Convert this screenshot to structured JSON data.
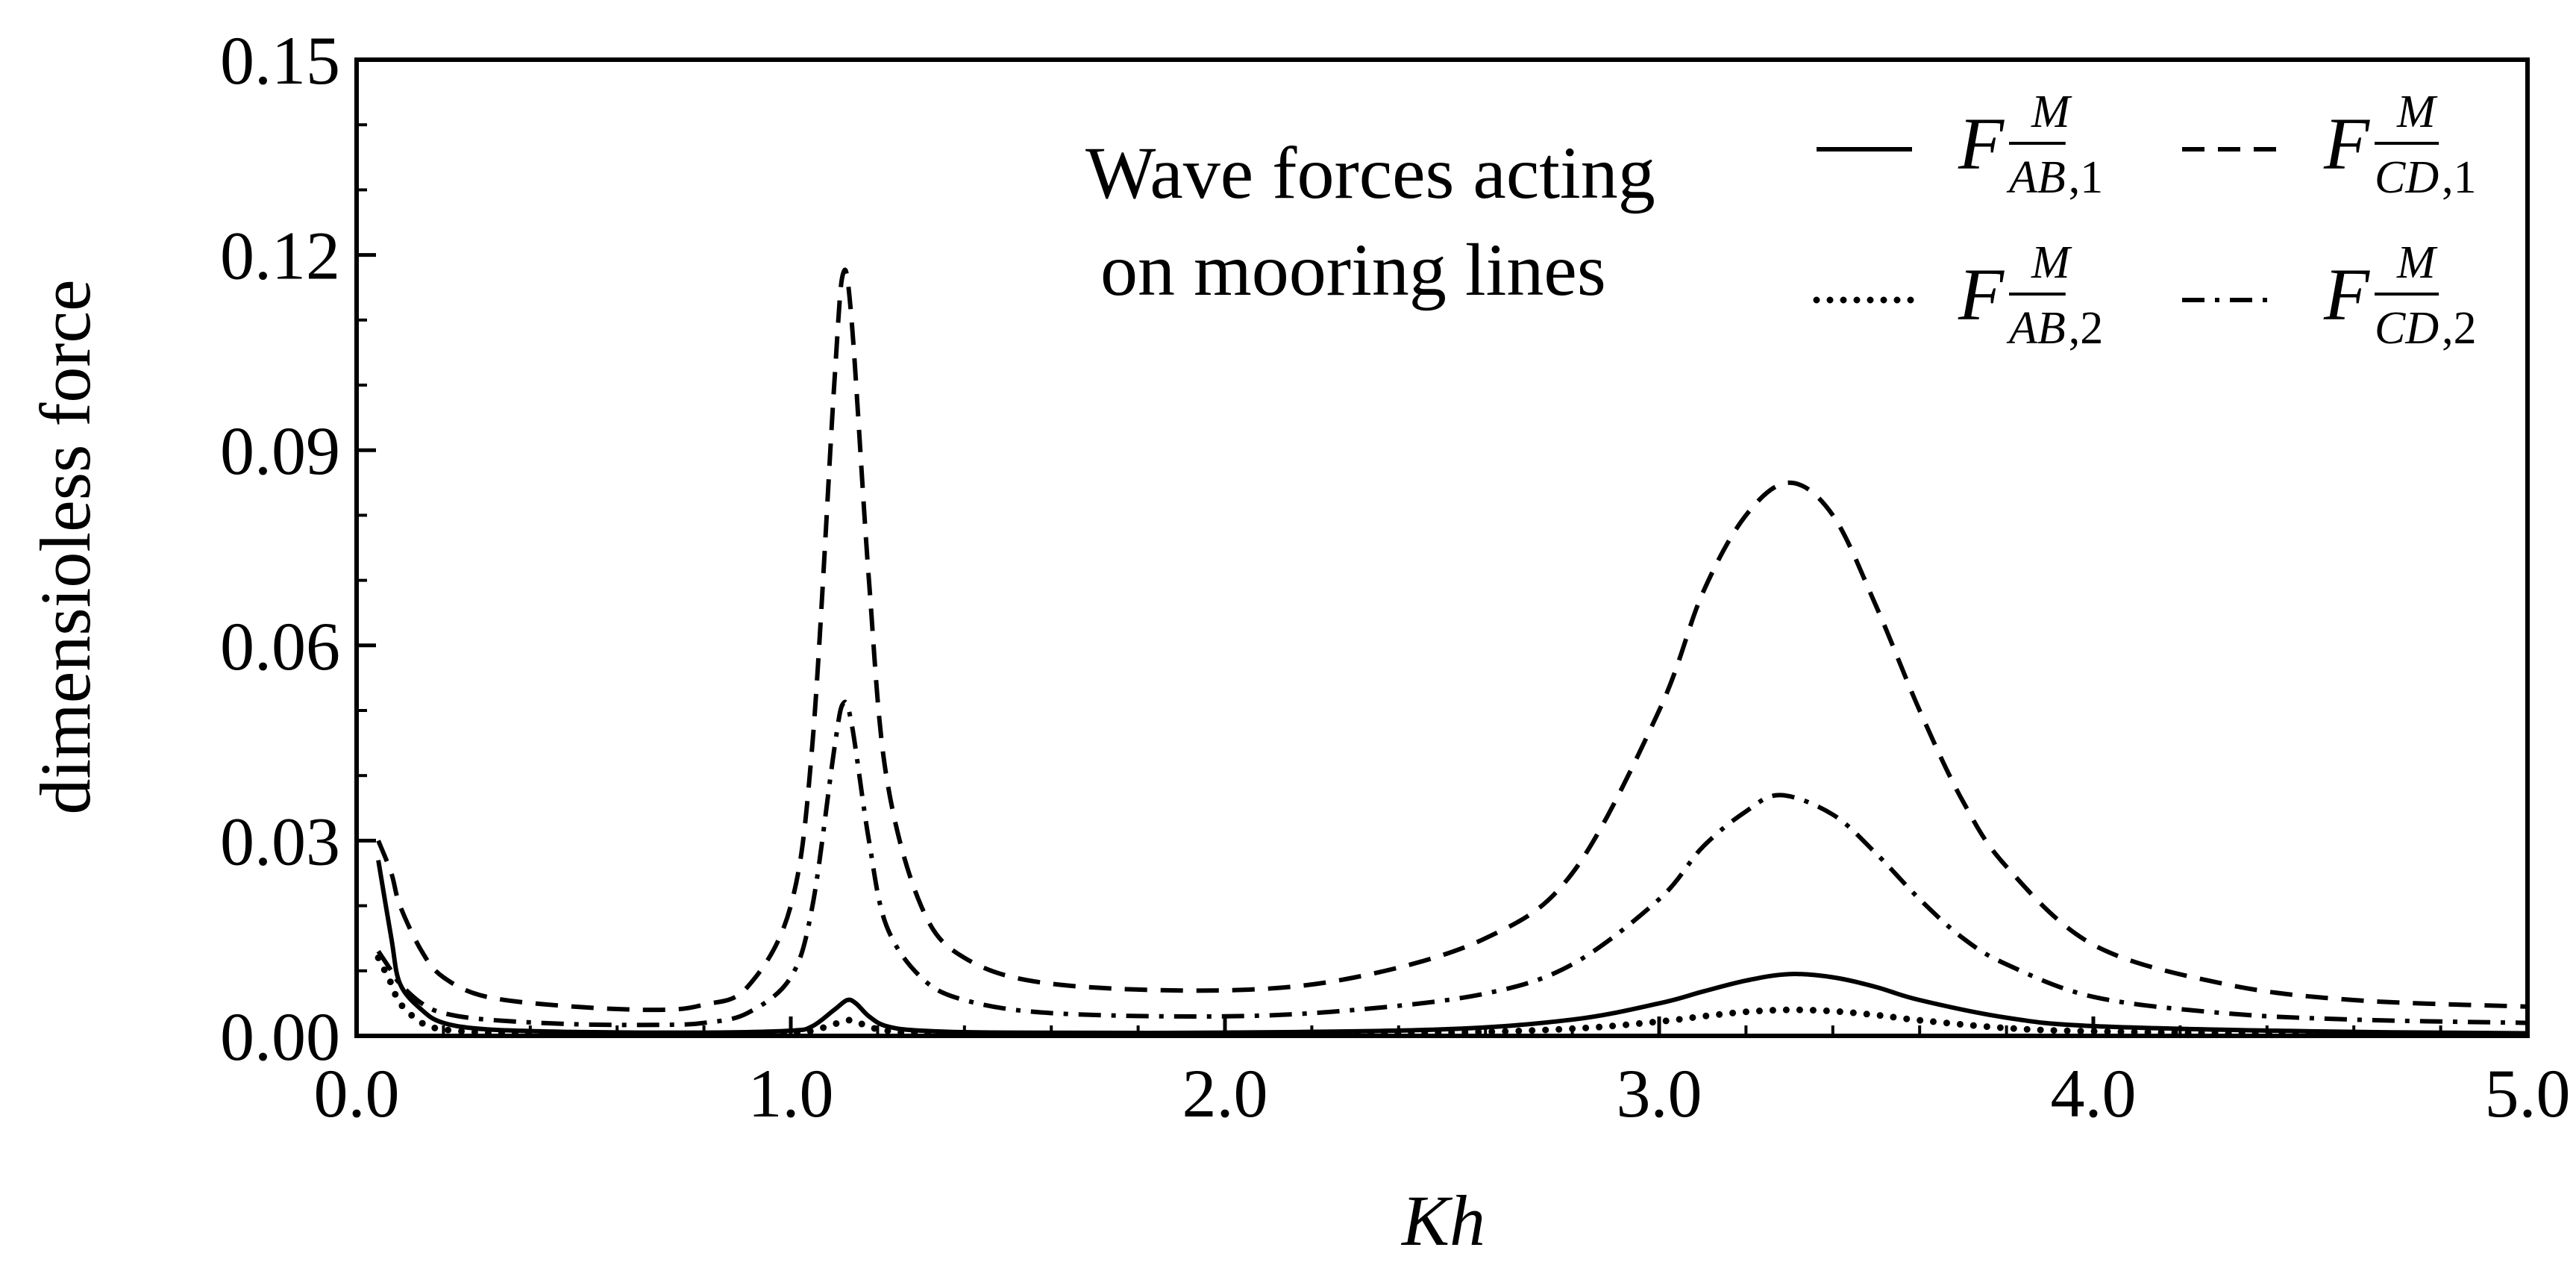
{
  "chart_data": {
    "type": "line",
    "title": "",
    "annotation": [
      "Wave forces acting",
      "on mooring lines"
    ],
    "xlabel": "Kh",
    "ylabel": "dimensioless  force",
    "xlim": [
      0.0,
      5.0
    ],
    "ylim": [
      0.0,
      0.15
    ],
    "x_ticks": [
      "0.0",
      "1.0",
      "2.0",
      "3.0",
      "4.0",
      "5.0"
    ],
    "y_ticks": [
      "0.00",
      "0.03",
      "0.06",
      "0.09",
      "0.12",
      "0.15"
    ],
    "grid": false,
    "legend_position": "top-right",
    "series": [
      {
        "name": "F^M_{AB,1}",
        "legend": {
          "main": "F",
          "sup": "M",
          "sub": "AB",
          "idx": ",1"
        },
        "style": "solid",
        "x": [
          0.05,
          0.08,
          0.1,
          0.15,
          0.2,
          0.3,
          0.5,
          0.8,
          1.0,
          1.05,
          1.1,
          1.13,
          1.15,
          1.18,
          1.22,
          1.3,
          1.5,
          2.0,
          2.5,
          2.8,
          3.0,
          3.1,
          3.2,
          3.3,
          3.4,
          3.5,
          3.6,
          3.8,
          4.0,
          4.5,
          5.0
        ],
        "y": [
          0.027,
          0.015,
          0.008,
          0.004,
          0.002,
          0.001,
          0.0006,
          0.0005,
          0.0008,
          0.0015,
          0.004,
          0.0055,
          0.005,
          0.003,
          0.0015,
          0.0008,
          0.0005,
          0.0005,
          0.001,
          0.0025,
          0.005,
          0.0068,
          0.0085,
          0.0095,
          0.009,
          0.0075,
          0.0055,
          0.0028,
          0.0015,
          0.0007,
          0.0004
        ]
      },
      {
        "name": "F^M_{AB,2}",
        "legend": {
          "main": "F",
          "sup": "M",
          "sub": "AB",
          "idx": ",2"
        },
        "style": "dotted",
        "x": [
          0.05,
          0.08,
          0.1,
          0.15,
          0.2,
          0.3,
          0.5,
          0.8,
          1.0,
          1.05,
          1.1,
          1.13,
          1.15,
          1.18,
          1.22,
          1.3,
          1.5,
          2.0,
          2.5,
          2.8,
          3.0,
          3.1,
          3.2,
          3.3,
          3.4,
          3.5,
          3.6,
          3.8,
          4.0,
          4.5,
          5.0
        ],
        "y": [
          0.012,
          0.008,
          0.005,
          0.002,
          0.001,
          0.0005,
          0.0003,
          0.0003,
          0.0004,
          0.0008,
          0.0018,
          0.0024,
          0.0022,
          0.0014,
          0.0008,
          0.0004,
          0.0003,
          0.0003,
          0.0005,
          0.0011,
          0.0022,
          0.003,
          0.0037,
          0.004,
          0.0038,
          0.0032,
          0.0024,
          0.0012,
          0.0007,
          0.0003,
          0.0002
        ]
      },
      {
        "name": "F^M_{CD,1}",
        "legend": {
          "main": "F",
          "sup": "M",
          "sub": "CD",
          "idx": ",1"
        },
        "style": "dashed",
        "x": [
          0.05,
          0.08,
          0.1,
          0.15,
          0.2,
          0.3,
          0.5,
          0.7,
          0.8,
          0.9,
          1.0,
          1.05,
          1.1,
          1.12,
          1.14,
          1.18,
          1.22,
          1.3,
          1.4,
          1.6,
          2.0,
          2.3,
          2.6,
          2.8,
          3.0,
          3.1,
          3.2,
          3.3,
          3.4,
          3.5,
          3.6,
          3.7,
          3.8,
          4.0,
          4.3,
          4.6,
          5.0
        ],
        "y": [
          0.03,
          0.025,
          0.02,
          0.013,
          0.009,
          0.006,
          0.0045,
          0.004,
          0.0048,
          0.0075,
          0.02,
          0.045,
          0.1,
          0.117,
          0.11,
          0.07,
          0.04,
          0.02,
          0.012,
          0.008,
          0.007,
          0.009,
          0.015,
          0.025,
          0.05,
          0.068,
          0.08,
          0.085,
          0.08,
          0.066,
          0.05,
          0.036,
          0.026,
          0.014,
          0.008,
          0.0055,
          0.0045
        ]
      },
      {
        "name": "F^M_{CD,2}",
        "legend": {
          "main": "F",
          "sup": "M",
          "sub": "CD",
          "idx": ",2"
        },
        "style": "dashdot",
        "x": [
          0.05,
          0.08,
          0.1,
          0.15,
          0.2,
          0.3,
          0.5,
          0.7,
          0.8,
          0.9,
          1.0,
          1.05,
          1.1,
          1.12,
          1.14,
          1.18,
          1.22,
          1.3,
          1.4,
          1.6,
          2.0,
          2.3,
          2.6,
          2.8,
          3.0,
          3.1,
          3.2,
          3.28,
          3.4,
          3.5,
          3.6,
          3.7,
          3.8,
          4.0,
          4.3,
          4.6,
          5.0
        ],
        "y": [
          0.013,
          0.01,
          0.008,
          0.005,
          0.0035,
          0.0025,
          0.0018,
          0.0017,
          0.002,
          0.0035,
          0.009,
          0.02,
          0.044,
          0.051,
          0.048,
          0.03,
          0.017,
          0.009,
          0.0055,
          0.0035,
          0.003,
          0.004,
          0.0065,
          0.011,
          0.021,
          0.029,
          0.0345,
          0.037,
          0.034,
          0.028,
          0.021,
          0.015,
          0.011,
          0.006,
          0.0035,
          0.0025,
          0.002
        ]
      }
    ]
  }
}
